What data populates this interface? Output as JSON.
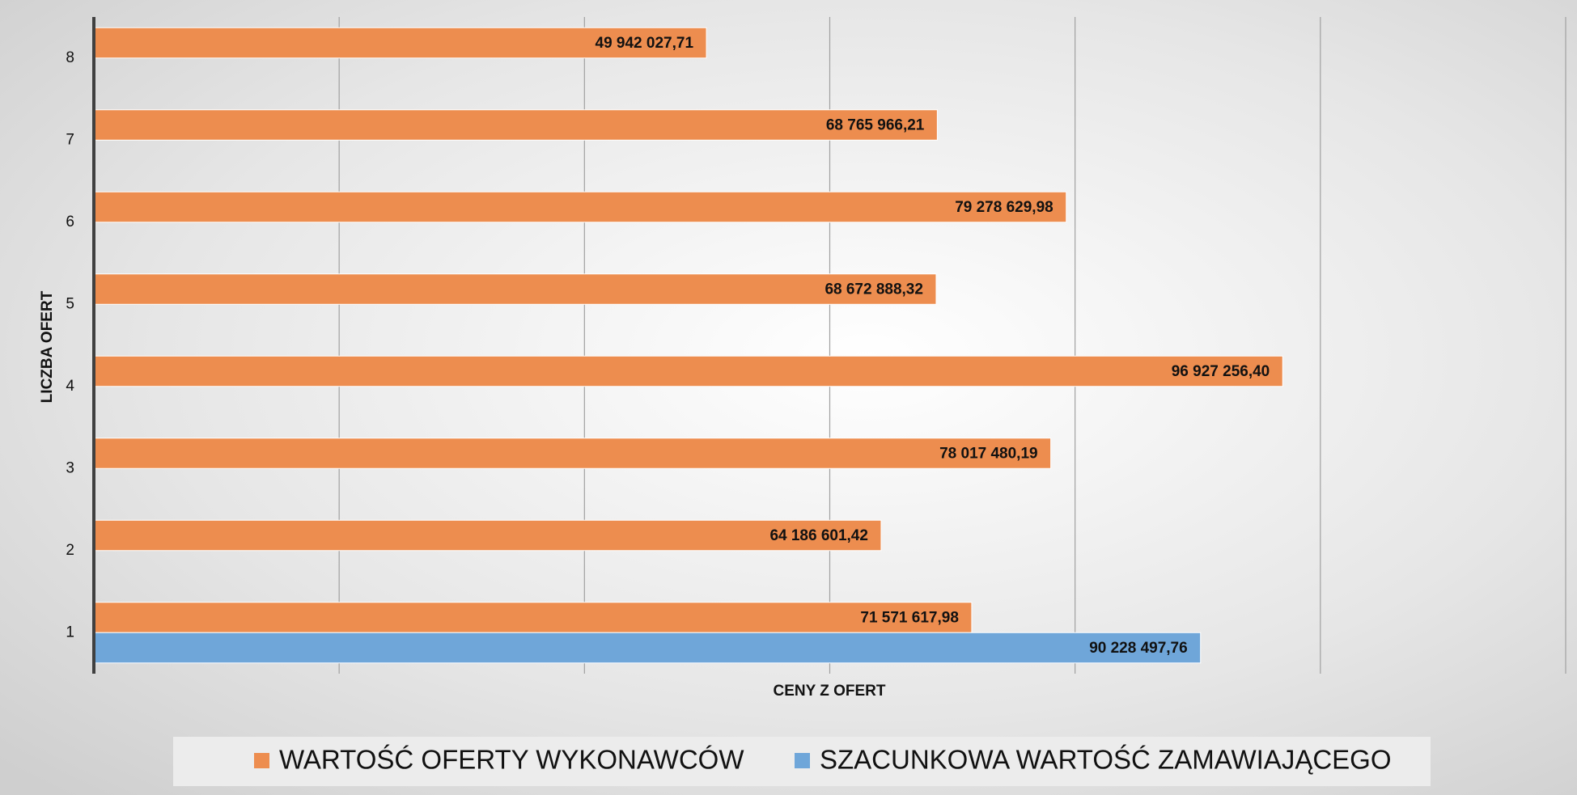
{
  "chart_data": {
    "type": "hbar",
    "x_label": "CENY Z OFERT",
    "y_label": "LICZBA OFERT",
    "categories": [
      "1",
      "2",
      "3",
      "4",
      "5",
      "6",
      "7",
      "8"
    ],
    "series": [
      {
        "name": "WARTOŚĆ OFERTY WYKONAWCÓW",
        "color": "#ed8d4f",
        "values": [
          71571617.98,
          64186601.42,
          78017480.19,
          96927256.4,
          68672888.32,
          79278629.98,
          68765966.21,
          49942027.71
        ],
        "value_labels": [
          "71 571 617,98",
          "64 186 601,42",
          "78 017 480,19",
          "96 927 256,40",
          "68 672 888,32",
          "79 278 629,98",
          "68 765 966,21",
          "49 942 027,71"
        ]
      },
      {
        "name": "SZACUNKOWA WARTOŚĆ ZAMAWIAJĄCEGO",
        "color": "#6fa6d9",
        "values": [
          90228497.76,
          null,
          null,
          null,
          null,
          null,
          null,
          null
        ],
        "value_labels": [
          "90 228 497,76",
          null,
          null,
          null,
          null,
          null,
          null,
          null
        ]
      }
    ],
    "xlim": [
      0,
      120000000
    ],
    "xticks": [
      0,
      20000000,
      40000000,
      60000000,
      80000000,
      100000000,
      120000000
    ],
    "grid": true,
    "legend": "bottom"
  }
}
